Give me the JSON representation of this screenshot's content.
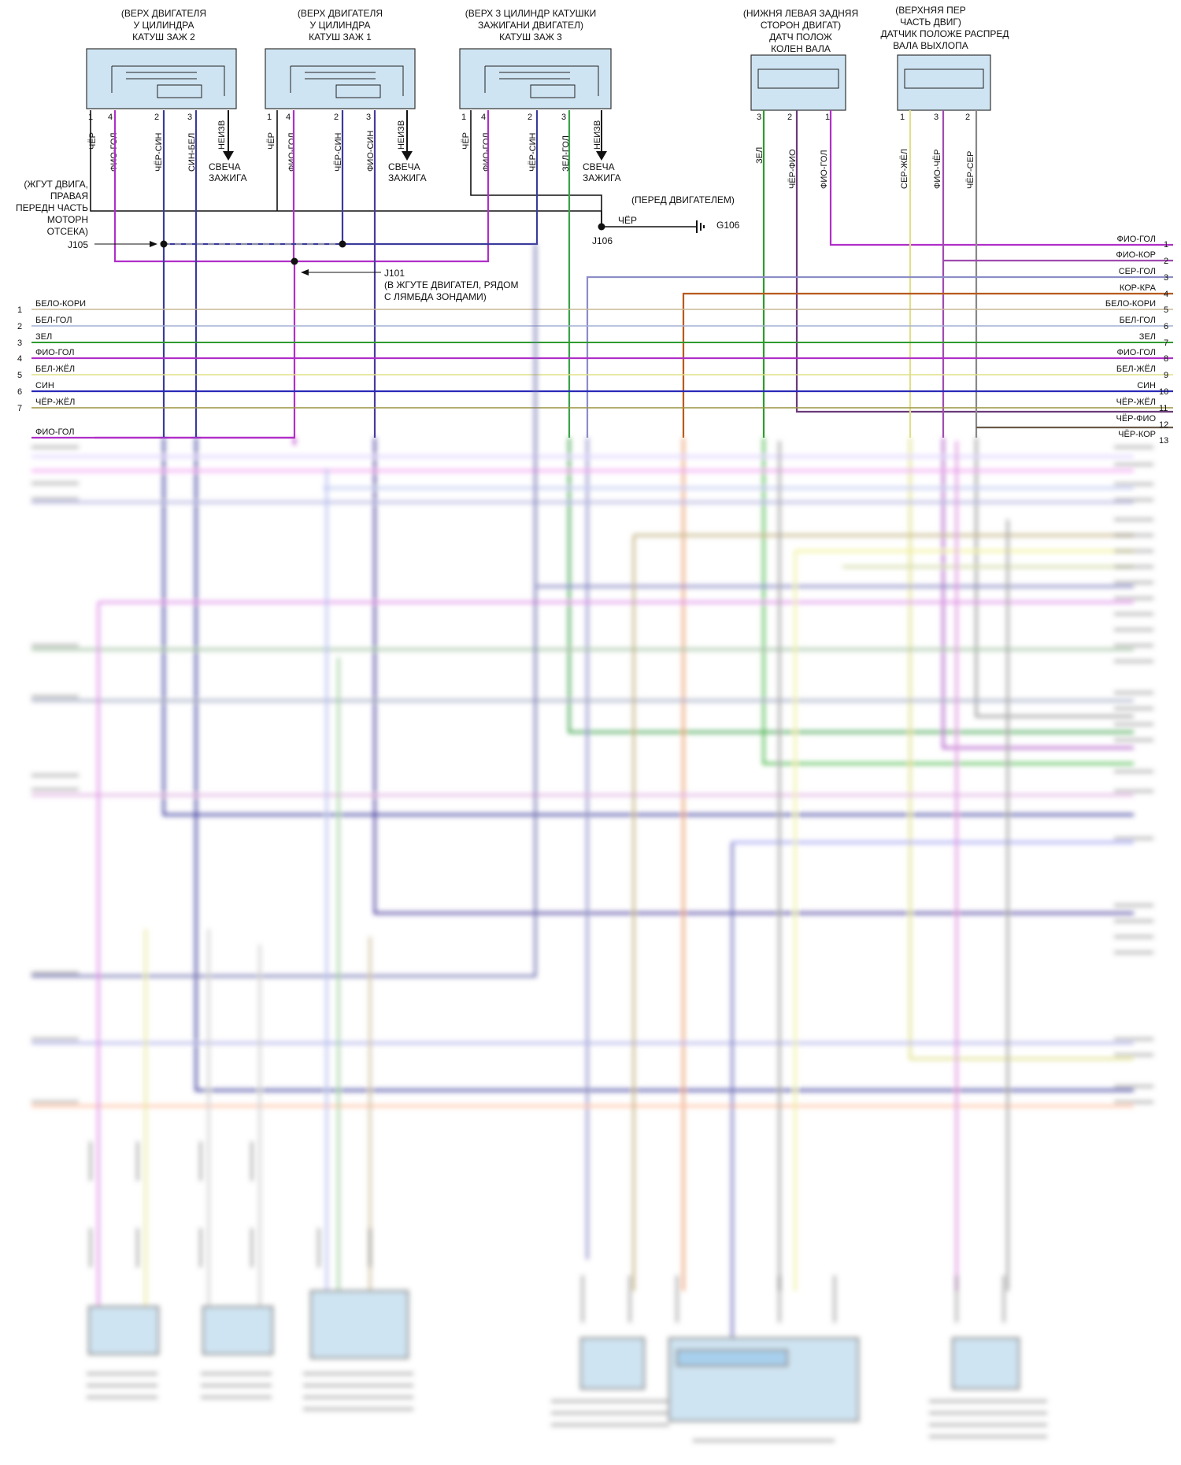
{
  "components": {
    "coil2": {
      "title": [
        "(ВЕРХ ДВИГАТЕЛЯ",
        "У ЦИЛИНДРА",
        "КАТУШ ЗАЖ 2"
      ],
      "pins": [
        {
          "n": "1",
          "wire": "ЧЁР"
        },
        {
          "n": "4",
          "wire": "ФИО-ГОЛ"
        },
        {
          "n": "2",
          "wire": "ЧЁР-СИН"
        },
        {
          "n": "3",
          "wire": "СИН-БЕЛ"
        }
      ],
      "extra": "НЕИЗВ",
      "spark": [
        "СВЕЧА",
        "ЗАЖИГА"
      ]
    },
    "coil1": {
      "title": [
        "(ВЕРХ ДВИГАТЕЛЯ",
        "У ЦИЛИНДРА",
        "КАТУШ ЗАЖ 1"
      ],
      "pins": [
        {
          "n": "1",
          "wire": "ЧЁР"
        },
        {
          "n": "4",
          "wire": "ФИО-ГОЛ"
        },
        {
          "n": "2",
          "wire": "ЧЁР-СИН"
        },
        {
          "n": "3",
          "wire": "ФИО-СИН"
        }
      ],
      "extra": "НЕИЗВ",
      "spark": [
        "СВЕЧА",
        "ЗАЖИГА"
      ]
    },
    "coil3": {
      "title": [
        "(ВЕРХ 3 ЦИЛИНДР КАТУШКИ",
        "ЗАЖИГАНИ ДВИГАТЕЛ)",
        "КАТУШ ЗАЖ 3"
      ],
      "pins": [
        {
          "n": "1",
          "wire": "ЧЁР"
        },
        {
          "n": "4",
          "wire": "ФИО-ГОЛ"
        },
        {
          "n": "2",
          "wire": "ЧЁР-СИН"
        },
        {
          "n": "3",
          "wire": "ЗЕЛ-ГОЛ"
        }
      ],
      "extra": "НЕИЗВ",
      "spark": [
        "СВЕЧА",
        "ЗАЖИГА"
      ]
    },
    "ckp": {
      "title": [
        "(НИЖНЯ ЛЕВАЯ ЗАДНЯЯ",
        "СТОРОН ДВИГАТ)",
        "ДАТЧ ПОЛОЖ",
        "КОЛЕН ВАЛА"
      ],
      "pins": [
        {
          "n": "3",
          "wire": "ЗЕЛ"
        },
        {
          "n": "2",
          "wire": "ЧЁР-ФИО"
        },
        {
          "n": "1",
          "wire": "ФИО-ГОЛ"
        }
      ]
    },
    "cmp": {
      "title": [
        "(ВЕРХНЯЯ ПЕР",
        "ЧАСТЬ ДВИГ)",
        "ДАТЧИК ПОЛОЖЕ РАСПРЕД",
        "ВАЛА ВЫХЛОПА"
      ],
      "pins": [
        {
          "n": "1",
          "wire": "СЕР-ЖЁЛ"
        },
        {
          "n": "3",
          "wire": "ФИО-ЧЁР"
        },
        {
          "n": "2",
          "wire": "ЧЁР-СЕР"
        }
      ]
    }
  },
  "splices": {
    "j105_note": [
      "(ЖГУТ ДВИГА,",
      "ПРАВАЯ",
      "ПЕРЕДН ЧАСТЬ",
      "МОТОРН",
      "ОТСЕКА)"
    ],
    "j105": "J105",
    "j101": "J101",
    "j101_note": [
      "(В ЖГУТЕ ДВИГАТЕЛ, РЯДОМ",
      "С ЛЯМБДА ЗОНДАМИ)"
    ],
    "j106": "J106",
    "j106_wire": "ЧЁР",
    "front_note": "(ПЕРЕД ДВИГАТЕЛЕМ)",
    "ground": "G106"
  },
  "left_connector": {
    "rows": [
      {
        "n": "1",
        "label": "БЕЛО-КОРИ",
        "color": "#c8b896"
      },
      {
        "n": "2",
        "label": "БЕЛ-ГОЛ",
        "color": "#a4b0d4"
      },
      {
        "n": "3",
        "label": "ЗЕЛ",
        "color": "#2e9b2e"
      },
      {
        "n": "4",
        "label": "ФИО-ГОЛ",
        "color": "#b02fc8"
      },
      {
        "n": "5",
        "label": "БЕЛ-ЖЁЛ",
        "color": "#e0e08a"
      },
      {
        "n": "6",
        "label": "СИН",
        "color": "#2a2ab8"
      },
      {
        "n": "7",
        "label": "ЧЁР-ЖЁЛ",
        "color": "#9c9440"
      }
    ],
    "extra_label": "ФИО-ГОЛ"
  },
  "right_connector": {
    "rows": [
      {
        "n": "1",
        "label": "ФИО-ГОЛ",
        "color": "#b02fc8"
      },
      {
        "n": "2",
        "label": "ФИО-КОР",
        "color": "#a04cb0"
      },
      {
        "n": "3",
        "label": "СЕР-ГОЛ",
        "color": "#8c8cc8"
      },
      {
        "n": "4",
        "label": "КОР-КРА",
        "color": "#b85a1e"
      },
      {
        "n": "5",
        "label": "БЕЛО-КОРИ",
        "color": "#c8b896"
      },
      {
        "n": "6",
        "label": "БЕЛ-ГОЛ",
        "color": "#a4b0d4"
      },
      {
        "n": "7",
        "label": "ЗЕЛ",
        "color": "#2e9b2e"
      },
      {
        "n": "8",
        "label": "ФИО-ГОЛ",
        "color": "#b02fc8"
      },
      {
        "n": "9",
        "label": "БЕЛ-ЖЁЛ",
        "color": "#e0e08a"
      },
      {
        "n": "10",
        "label": "СИН",
        "color": "#2a2ab8"
      },
      {
        "n": "11",
        "label": "ЧЁР-ЖЁЛ",
        "color": "#9c9440"
      },
      {
        "n": "12",
        "label": "ЧЁР-ФИО",
        "color": "#6a3a7a"
      },
      {
        "n": "13",
        "label": "ЧЁР-КОР",
        "color": "#6a5a4a"
      }
    ]
  },
  "colors": {
    "fio_gol": "#b02fc8",
    "blue": "#3a3a9c",
    "green": "#2e9b2e",
    "yellow": "#e0e08a",
    "grey": "#888888",
    "brown": "#b85a1e",
    "black": "#111111",
    "box_fill": "#cfe4f2",
    "box_stroke": "#333333"
  }
}
